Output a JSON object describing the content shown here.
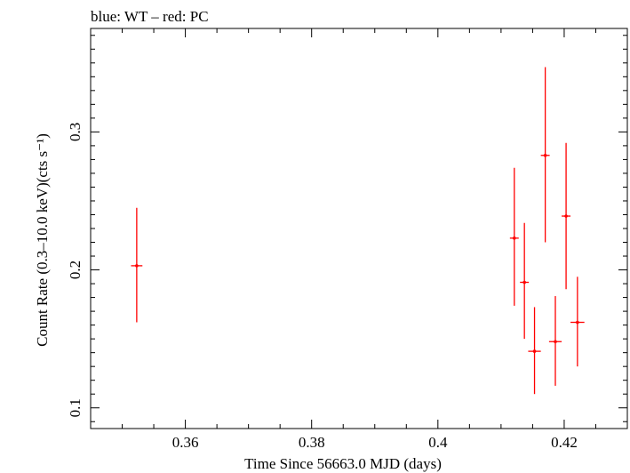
{
  "chart_data": {
    "type": "scatter",
    "title": "blue: WT – red: PC",
    "xlabel": "Time Since 56663.0 MJD (days)",
    "ylabel": "Count Rate (0.3–10.0 keV)(cts s⁻¹)",
    "xlim": [
      0.345,
      0.43
    ],
    "ylim": [
      0.085,
      0.375
    ],
    "x_ticks": [
      0.36,
      0.38,
      0.4,
      0.42
    ],
    "x_tick_labels": [
      "0.36",
      "0.38",
      "0.4",
      "0.42"
    ],
    "y_ticks": [
      0.1,
      0.2,
      0.3
    ],
    "y_tick_labels": [
      "0.1",
      "0.2",
      "0.3"
    ],
    "grid": false,
    "series": [
      {
        "name": "PC",
        "color": "#ff0000",
        "points": [
          {
            "x": 0.3523,
            "y": 0.203,
            "xerr": 0.0009,
            "ylo": 0.162,
            "yhi": 0.245
          },
          {
            "x": 0.4121,
            "y": 0.223,
            "xerr": 0.0007,
            "ylo": 0.174,
            "yhi": 0.274
          },
          {
            "x": 0.4137,
            "y": 0.191,
            "xerr": 0.0007,
            "ylo": 0.15,
            "yhi": 0.234
          },
          {
            "x": 0.4153,
            "y": 0.141,
            "xerr": 0.001,
            "ylo": 0.11,
            "yhi": 0.173
          },
          {
            "x": 0.417,
            "y": 0.283,
            "xerr": 0.0007,
            "ylo": 0.22,
            "yhi": 0.347
          },
          {
            "x": 0.4186,
            "y": 0.148,
            "xerr": 0.001,
            "ylo": 0.116,
            "yhi": 0.181
          },
          {
            "x": 0.4203,
            "y": 0.239,
            "xerr": 0.0007,
            "ylo": 0.186,
            "yhi": 0.292
          },
          {
            "x": 0.4221,
            "y": 0.162,
            "xerr": 0.0011,
            "ylo": 0.13,
            "yhi": 0.195
          }
        ]
      }
    ]
  }
}
